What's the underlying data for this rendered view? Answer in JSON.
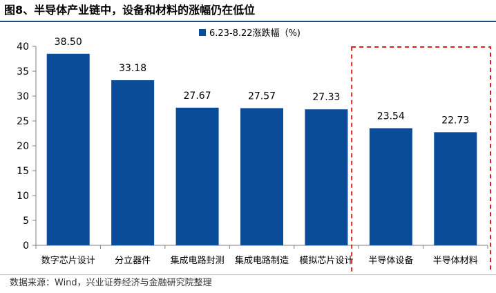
{
  "figure": {
    "title": "图8、半导体产业链中，设备和材料的涨幅仍在低位",
    "source": "数据来源：Wind，兴业证券经济与金融研究院整理"
  },
  "chart_data": {
    "type": "bar",
    "categories": [
      "数字芯片设计",
      "分立器件",
      "集成电路封测",
      "集成电路制造",
      "模拟芯片设计",
      "半导体设备",
      "半导体材料"
    ],
    "series": [
      {
        "name": "6.23-8.22涨跌幅（%)",
        "values": [
          38.5,
          33.18,
          27.67,
          27.57,
          27.33,
          23.54,
          22.73
        ],
        "labels": [
          "38.50",
          "33.18",
          "27.67",
          "27.57",
          "27.33",
          "23.54",
          "22.73"
        ]
      }
    ],
    "ylim": [
      0,
      40
    ],
    "yticks": [
      0,
      5,
      10,
      15,
      20,
      25,
      30,
      35,
      40
    ],
    "grid": false,
    "legend_position": "top-center",
    "highlight_categories": [
      "半导体设备",
      "半导体材料"
    ],
    "colors": {
      "bar": "#0b4c98",
      "highlight_box": "#e02020",
      "axis": "#7f7f7f"
    }
  }
}
